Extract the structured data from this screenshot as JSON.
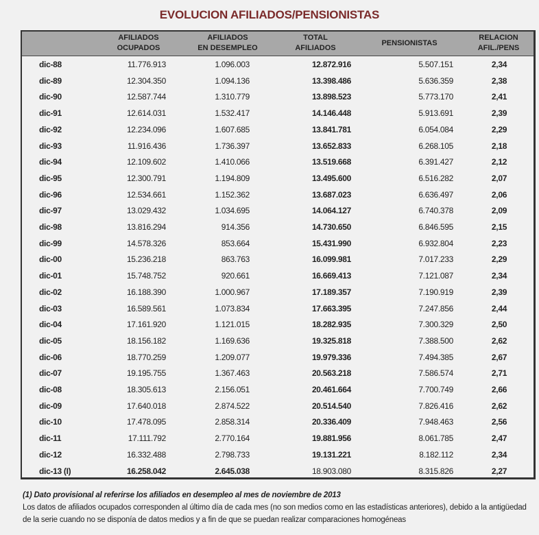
{
  "title": "EVOLUCION  AFILIADOS/PENSIONISTAS",
  "headers": {
    "ocupados": [
      "AFILIADOS",
      "OCUPADOS"
    ],
    "desempleo": [
      "AFILIADOS",
      "EN DESEMPLEO"
    ],
    "total": [
      "TOTAL",
      "AFILIADOS"
    ],
    "pensionistas": "PENSIONISTAS",
    "relacion": [
      "RELACION",
      "AFIL./PENS"
    ]
  },
  "rows": [
    [
      "dic-88",
      "11.776.913",
      "1.096.003",
      "12.872.916",
      "5.507.151",
      "2,34"
    ],
    [
      "dic-89",
      "12.304.350",
      "1.094.136",
      "13.398.486",
      "5.636.359",
      "2,38"
    ],
    [
      "dic-90",
      "12.587.744",
      "1.310.779",
      "13.898.523",
      "5.773.170",
      "2,41"
    ],
    [
      "dic-91",
      "12.614.031",
      "1.532.417",
      "14.146.448",
      "5.913.691",
      "2,39"
    ],
    [
      "dic-92",
      "12.234.096",
      "1.607.685",
      "13.841.781",
      "6.054.084",
      "2,29"
    ],
    [
      "dic-93",
      "11.916.436",
      "1.736.397",
      "13.652.833",
      "6.268.105",
      "2,18"
    ],
    [
      "dic-94",
      "12.109.602",
      "1.410.066",
      "13.519.668",
      "6.391.427",
      "2,12"
    ],
    [
      "dic-95",
      "12.300.791",
      "1.194.809",
      "13.495.600",
      "6.516.282",
      "2,07"
    ],
    [
      "dic-96",
      "12.534.661",
      "1.152.362",
      "13.687.023",
      "6.636.497",
      "2,06"
    ],
    [
      "dic-97",
      "13.029.432",
      "1.034.695",
      "14.064.127",
      "6.740.378",
      "2,09"
    ],
    [
      "dic-98",
      "13.816.294",
      "914.356",
      "14.730.650",
      "6.846.595",
      "2,15"
    ],
    [
      "dic-99",
      "14.578.326",
      "853.664",
      "15.431.990",
      "6.932.804",
      "2,23"
    ],
    [
      "dic-00",
      "15.236.218",
      "863.763",
      "16.099.981",
      "7.017.233",
      "2,29"
    ],
    [
      "dic-01",
      "15.748.752",
      "920.661",
      "16.669.413",
      "7.121.087",
      "2,34"
    ],
    [
      "dic-02",
      "16.188.390",
      "1.000.967",
      "17.189.357",
      "7.190.919",
      "2,39"
    ],
    [
      "dic-03",
      "16.589.561",
      "1.073.834",
      "17.663.395",
      "7.247.856",
      "2,44"
    ],
    [
      "dic-04",
      "17.161.920",
      "1.121.015",
      "18.282.935",
      "7.300.329",
      "2,50"
    ],
    [
      "dic-05",
      "18.156.182",
      "1.169.636",
      "19.325.818",
      "7.388.500",
      "2,62"
    ],
    [
      "dic-06",
      "18.770.259",
      "1.209.077",
      "19.979.336",
      "7.494.385",
      "2,67"
    ],
    [
      "dic-07",
      "19.195.755",
      "1.367.463",
      "20.563.218",
      "7.586.574",
      "2,71"
    ],
    [
      "dic-08",
      "18.305.613",
      "2.156.051",
      "20.461.664",
      "7.700.749",
      "2,66"
    ],
    [
      "dic-09",
      "17.640.018",
      "2.874.522",
      "20.514.540",
      "7.826.416",
      "2,62"
    ],
    [
      "dic-10",
      "17.478.095",
      "2.858.314",
      "20.336.409",
      "7.948.463",
      "2,56"
    ],
    [
      "dic-11",
      "17.111.792",
      "2.770.164",
      "19.881.956",
      "8.061.785",
      "2,47"
    ],
    [
      "dic-12",
      "16.332.488",
      "2.798.733",
      "19.131.221",
      "8.182.112",
      "2,34"
    ],
    [
      "dic-13 (I)",
      "16.258.042",
      "2.645.038",
      "18.903.080",
      "8.315.826",
      "2,27"
    ]
  ],
  "footnotes": {
    "note1": "(1) Dato provisional al referirse los afiliados en desempleo al mes de noviembre de 2013",
    "note2": "Los datos de afiliados ocupados corresponden al último día de cada mes (no son medios como en las estadísticas anteriores), debido a la antigüedad de la serie cuando no se disponía de datos medios y a fin de que se puedan realizar comparaciones homogéneas"
  }
}
